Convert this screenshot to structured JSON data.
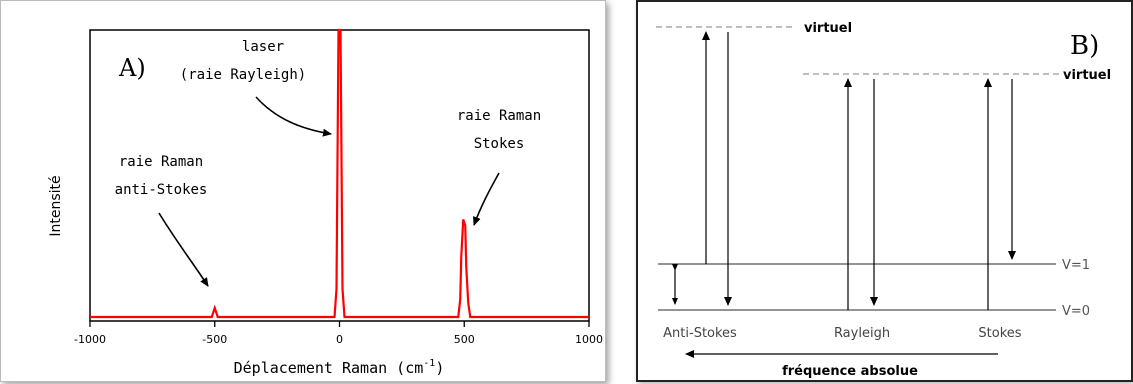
{
  "panel_a": {
    "panel_label": "A)",
    "annotations": {
      "laser_line1": "laser",
      "laser_line2": "(raie Rayleigh)",
      "stokes_line1": "raie Raman",
      "stokes_line2": "Stokes",
      "antistokes_line1": "raie Raman",
      "antistokes_line2": "anti-Stokes"
    },
    "line_color": "#ff0000"
  },
  "panel_b": {
    "panel_label": "B)",
    "virtual_label_top": "virtuel",
    "virtual_label_right": "virtuel",
    "level_v1": "V=1",
    "level_v0": "V=0",
    "col_antistokes": "Anti-Stokes",
    "col_rayleigh": "Rayleigh",
    "col_stokes": "Stokes",
    "axis_caption": "fréquence absolue"
  },
  "chart_data": {
    "type": "line",
    "xlabel": "Déplacement Raman (cm",
    "xlabel_sup": "-1",
    "xlabel_tail": ")",
    "ylabel": "Intensité",
    "xlim": [
      -1000,
      1000
    ],
    "xticks": [
      -1000,
      -500,
      0,
      500,
      1000
    ],
    "xtick_labels": [
      "-1000",
      "-500",
      "0",
      "500",
      "1000"
    ],
    "peaks": [
      {
        "x": -500,
        "y": 0.012
      },
      {
        "x": 0,
        "y": 1.0
      },
      {
        "x": 500,
        "y": 0.34
      }
    ],
    "ylim": [
      0,
      1
    ]
  }
}
